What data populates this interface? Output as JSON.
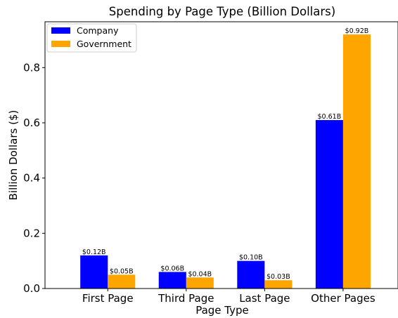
{
  "chart_data": {
    "type": "bar",
    "title": "Spending by Page Type (Billion Dollars)",
    "xlabel": "Page Type",
    "ylabel": "Billion Dollars ($)",
    "categories": [
      "First Page",
      "Third Page",
      "Last Page",
      "Other Pages"
    ],
    "series": [
      {
        "name": "Company",
        "color": "#0000ff",
        "values": [
          0.12,
          0.06,
          0.1,
          0.61
        ],
        "labels": [
          "$0.12B",
          "$0.06B",
          "$0.10B",
          "$0.61B"
        ]
      },
      {
        "name": "Government",
        "color": "#ffa500",
        "values": [
          0.05,
          0.04,
          0.03,
          0.92
        ],
        "labels": [
          "$0.05B",
          "$0.04B",
          "$0.03B",
          "$0.92B"
        ]
      }
    ],
    "ylim": [
      0,
      0.966
    ],
    "yticks": [
      0.0,
      0.2,
      0.4,
      0.6,
      0.8
    ],
    "ytick_labels": [
      "0.0",
      "0.2",
      "0.4",
      "0.6",
      "0.8"
    ],
    "legend_position": "top-left",
    "grid": false
  }
}
